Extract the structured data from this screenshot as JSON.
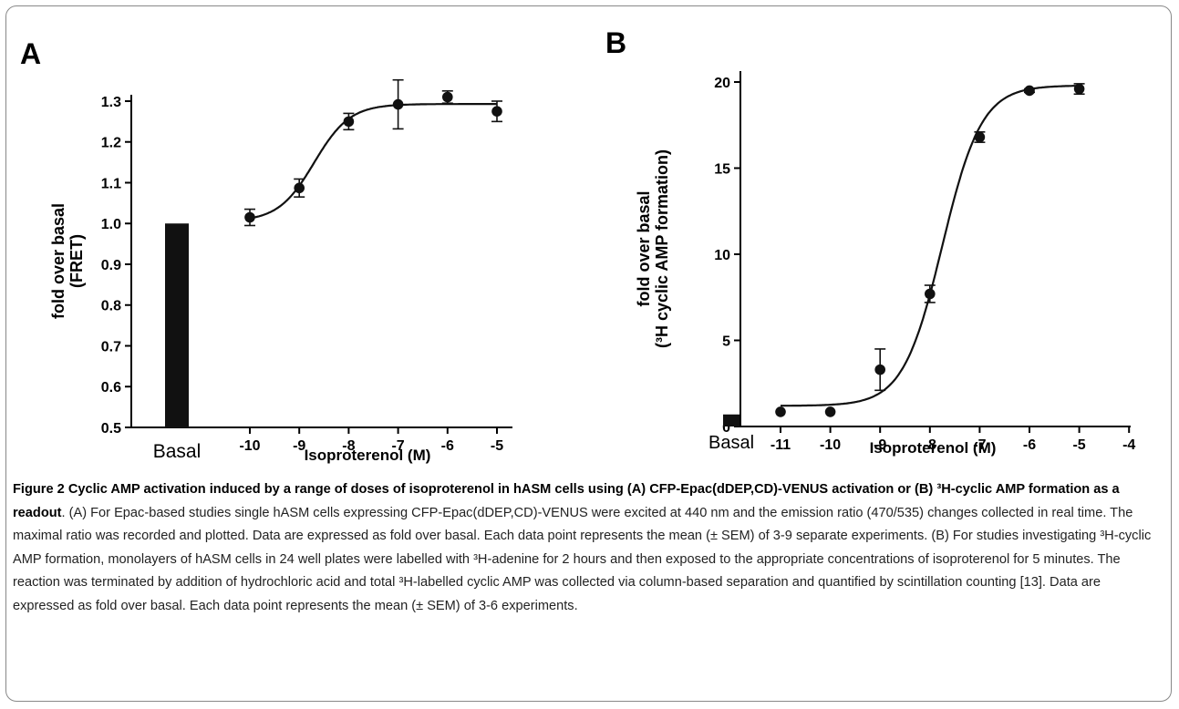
{
  "chart_data": [
    {
      "panel": "A",
      "type": "scatter",
      "ylabel_lines": [
        "fold over basal",
        "(FRET)"
      ],
      "xlabel": "Isoproterenol (M)",
      "ylim": [
        0.5,
        1.35
      ],
      "yticks": [
        0.5,
        0.6,
        0.7,
        0.8,
        0.9,
        1.0,
        1.1,
        1.2,
        1.3
      ],
      "ytick_labels": [
        "0.5",
        "0.6",
        "0.7",
        "0.8",
        "0.9",
        "1.0",
        "1.1",
        "1.2",
        "1.3"
      ],
      "xticks": [
        -10,
        -9,
        -8,
        -7,
        -6,
        -5
      ],
      "xtick_labels": [
        "-10",
        "-9",
        "-8",
        "-7",
        "-6",
        "-5"
      ],
      "bar": {
        "label": "Basal",
        "value": 1.0
      },
      "points": [
        {
          "x": -10,
          "y": 1.015,
          "err": 0.02
        },
        {
          "x": -9,
          "y": 1.087,
          "err": 0.022
        },
        {
          "x": -8,
          "y": 1.25,
          "err": 0.02
        },
        {
          "x": -7,
          "y": 1.292,
          "err": 0.06
        },
        {
          "x": -6,
          "y": 1.31,
          "err": 0.015
        },
        {
          "x": -5,
          "y": 1.275,
          "err": 0.025
        }
      ],
      "fit": {
        "bottom": 1.005,
        "top": 1.293,
        "logEC50": -8.7,
        "hill": 1.2
      }
    },
    {
      "panel": "B",
      "type": "scatter",
      "ylabel_lines": [
        "fold over basal",
        "(³H cyclic AMP formation)"
      ],
      "xlabel": "Isoproterenol (M)",
      "ylim": [
        0,
        20
      ],
      "yticks": [
        0,
        5,
        10,
        15,
        20
      ],
      "ytick_labels": [
        "0",
        "5",
        "10",
        "15",
        "20"
      ],
      "xticks": [
        -11,
        -10,
        -9,
        -8,
        -7,
        -6,
        -5,
        -4
      ],
      "xtick_labels": [
        "-11",
        "-10",
        "-9",
        "-8",
        "-7",
        "-6",
        "-5",
        "-4"
      ],
      "bar": {
        "label": "Basal",
        "value": 0.7
      },
      "points": [
        {
          "x": -11,
          "y": 0.85,
          "err": 0
        },
        {
          "x": -10,
          "y": 0.85,
          "err": 0
        },
        {
          "x": -9,
          "y": 3.3,
          "err": 1.2
        },
        {
          "x": -8,
          "y": 7.7,
          "err": 0.5
        },
        {
          "x": -7,
          "y": 16.8,
          "err": 0.3
        },
        {
          "x": -6,
          "y": 19.5,
          "err": 0.1
        },
        {
          "x": -5,
          "y": 19.6,
          "err": 0.3
        }
      ],
      "fit": {
        "bottom": 1.2,
        "top": 19.8,
        "logEC50": -7.75,
        "hill": 1.1
      }
    }
  ],
  "caption": {
    "title": "Figure 2 Cyclic AMP activation induced by a range of doses of isoproterenol in hASM cells using (A) CFP-Epac(dDEP,CD)-VENUS activation or (B) ³H-cyclic AMP formation as a readout",
    "body": ". (A) For Epac-based studies single hASM cells expressing CFP-Epac(dDEP,CD)-VENUS were excited at 440 nm and the emission ratio (470/535) changes collected in real time. The maximal ratio was recorded and plotted. Data are expressed as fold over basal. Each data point represents the mean (± SEM) of 3-9 separate experiments. (B) For studies investigating ³H-cyclic AMP formation, monolayers of hASM cells in 24 well plates were labelled with ³H-adenine for 2 hours and then exposed to the appropriate concentrations of isoproterenol for 5 minutes. The reaction was terminated by addition of hydrochloric acid and total ³H-labelled cyclic AMP was collected via column-based separation and quantified by scintillation counting [13]. Data are expressed as fold over basal. Each data point represents the mean (± SEM) of 3-6 experiments."
  }
}
